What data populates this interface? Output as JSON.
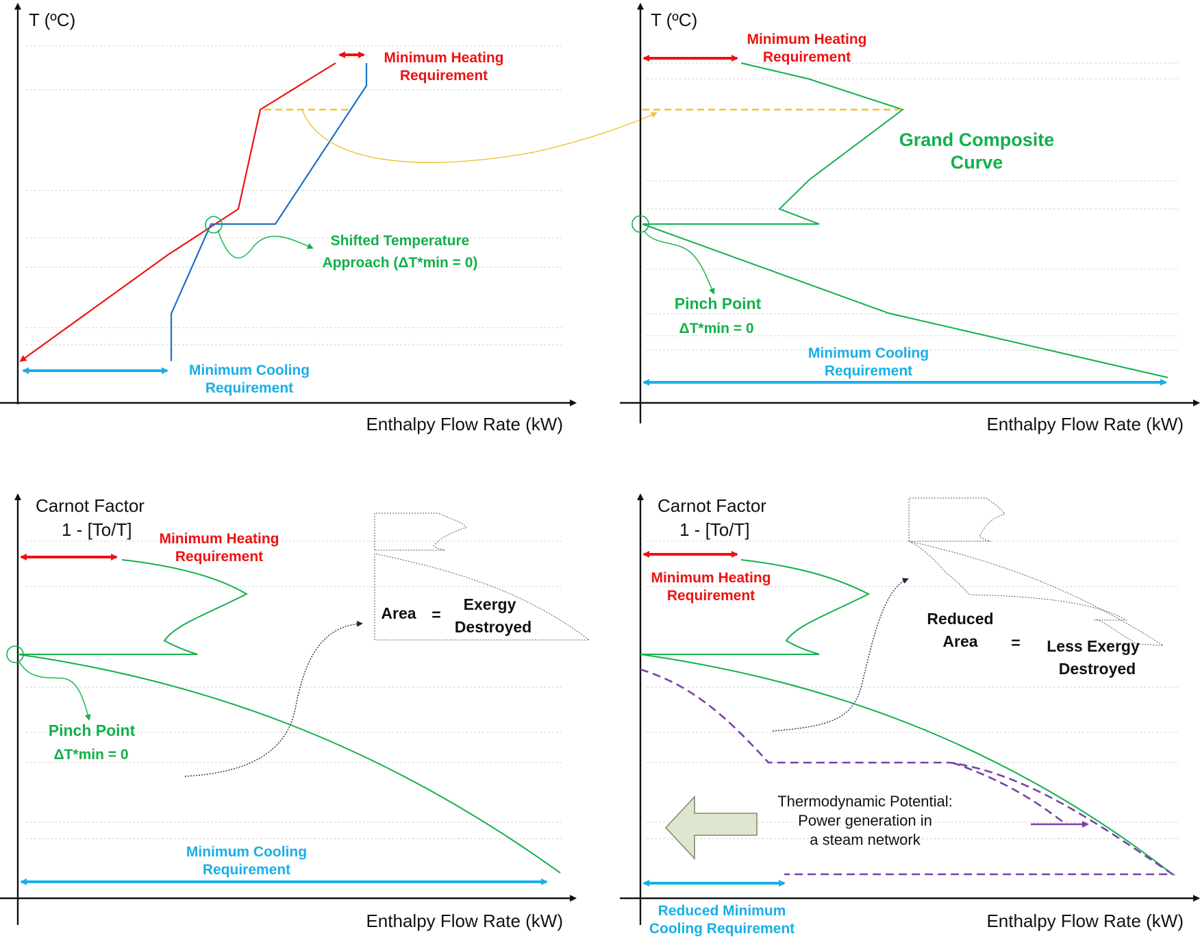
{
  "colors": {
    "hot": "#ee1111",
    "cold": "#1a6fc4",
    "gcc": "#12b04a",
    "cooling": "#19aee8",
    "steam": "#7a3fa6",
    "link": "#f2c12e",
    "arrowFill": "#dfe6cf",
    "arrowStroke": "#7d8c6c"
  },
  "panels": {
    "tl": {
      "y_axis_label": "T (ºC)",
      "x_axis_label": "Enthalpy Flow Rate (kW)",
      "heating": [
        "Minimum Heating",
        "Requirement"
      ],
      "shifted": [
        "Shifted Temperature",
        "Approach (ΔT*min = 0)"
      ],
      "cooling": [
        "Minimum Cooling",
        "Requirement"
      ]
    },
    "tr": {
      "y_axis_label": "T (ºC)",
      "x_axis_label": "Enthalpy Flow Rate (kW)",
      "heating": [
        "Minimum Heating",
        "Requirement"
      ],
      "gcc": [
        "Grand Composite",
        "Curve"
      ],
      "pinch": "Pinch Point",
      "pinch_dt": "ΔT*min = 0",
      "cooling": [
        "Minimum Cooling",
        "Requirement"
      ]
    },
    "bl": {
      "y_axis_label": [
        "Carnot Factor",
        "1 - [To/T]"
      ],
      "x_axis_label": "Enthalpy Flow Rate (kW)",
      "heating": [
        "Minimum Heating",
        "Requirement"
      ],
      "area": "Area",
      "equals": "=",
      "exergy": [
        "Exergy",
        "Destroyed"
      ],
      "pinch": "Pinch Point",
      "pinch_dt": "ΔT*min = 0",
      "cooling": [
        "Minimum Cooling",
        "Requirement"
      ]
    },
    "br": {
      "y_axis_label": [
        "Carnot Factor",
        "1 - [To/T]"
      ],
      "x_axis_label": "Enthalpy Flow Rate (kW)",
      "heating": [
        "Minimum Heating",
        "Requirement"
      ],
      "reduced_area": [
        "Reduced",
        "Area"
      ],
      "equals": "=",
      "less_exergy": [
        "Less Exergy",
        "Destroyed"
      ],
      "potential": [
        "Thermodynamic Potential:",
        "Power generation in",
        "a steam network"
      ],
      "cooling": [
        "Reduced Minimum",
        "Cooling Requirement"
      ]
    }
  }
}
